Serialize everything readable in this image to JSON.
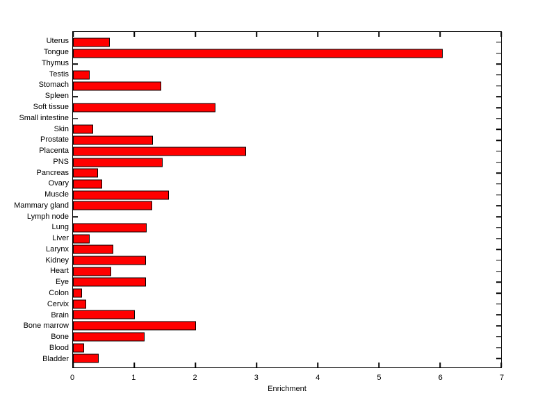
{
  "figure": {
    "background_color": "#ffffff",
    "axis_color": "#000000"
  },
  "chart_data": {
    "type": "bar",
    "orientation": "horizontal",
    "title": "",
    "xlabel": "Enrichment",
    "ylabel": "",
    "xlim": [
      0,
      7
    ],
    "xtick_labels": [
      "0",
      "1",
      "2",
      "3",
      "4",
      "5",
      "6",
      "7"
    ],
    "grid": false,
    "legend": null,
    "bar_color": "#ff0000",
    "bar_edge_color": "#000000",
    "categories": [
      "Uterus",
      "Tongue",
      "Thymus",
      "Testis",
      "Stomach",
      "Spleen",
      "Soft tissue",
      "Small intestine",
      "Skin",
      "Prostate",
      "Placenta",
      "PNS",
      "Pancreas",
      "Ovary",
      "Muscle",
      "Mammary gland",
      "Lymph node",
      "Lung",
      "Liver",
      "Larynx",
      "Kidney",
      "Heart",
      "Eye",
      "Colon",
      "Cervix",
      "Brain",
      "Bone marrow",
      "Bone",
      "Blood",
      "Bladder"
    ],
    "values": [
      0.6,
      6.05,
      0,
      0.27,
      1.44,
      0,
      2.33,
      0,
      0.33,
      1.31,
      2.83,
      1.47,
      0.41,
      0.48,
      1.57,
      1.3,
      0,
      1.2,
      0.27,
      0.66,
      1.19,
      0.63,
      1.19,
      0.15,
      0.22,
      1.01,
      2.01,
      1.17,
      0.18,
      0.42
    ]
  }
}
